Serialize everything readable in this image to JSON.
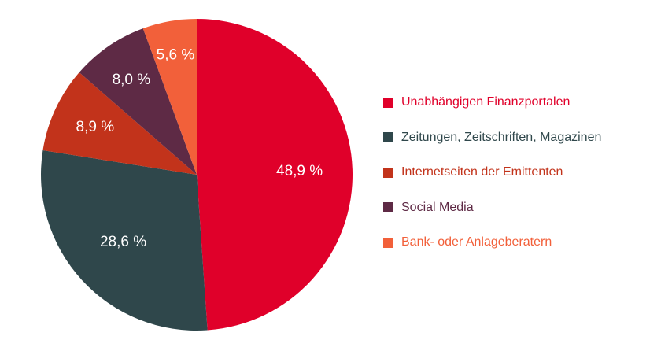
{
  "chart_data": {
    "type": "pie",
    "categories": [
      "Unabhängigen Finanzportalen",
      "Zeitungen, Zeitschriften, Magazinen",
      "Internetseiten der Emittenten",
      "Social Media",
      "Bank- oder Anlageberatern"
    ],
    "values": [
      48.9,
      28.6,
      8.9,
      8.0,
      5.6
    ],
    "value_labels": [
      "48,9 %",
      "28,6 %",
      "8,9 %",
      "8,0 %",
      "5,6 %"
    ],
    "colors": [
      "#e0002a",
      "#2f474b",
      "#c2331b",
      "#5e2a45",
      "#f2603a"
    ],
    "legend_text_colors": [
      "#e0002a",
      "#2f474b",
      "#c2331b",
      "#5e2a45",
      "#f2603a"
    ],
    "legend_placement": "right",
    "start_angle": "top, clockwise",
    "unit": "%"
  }
}
